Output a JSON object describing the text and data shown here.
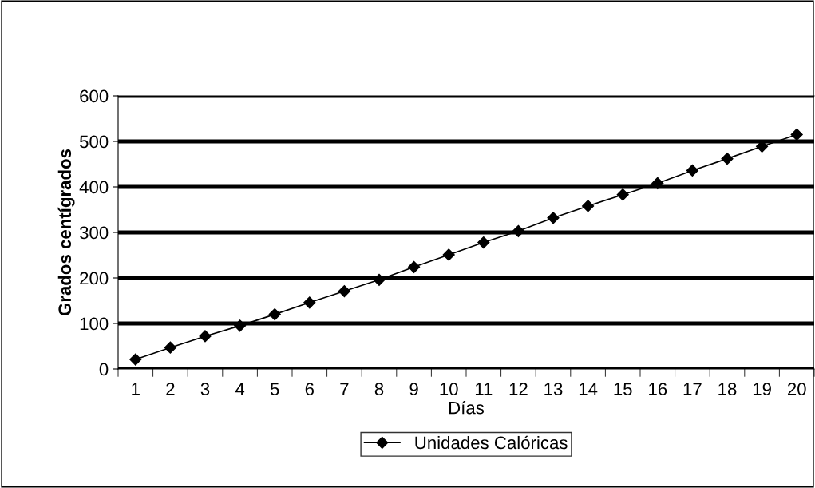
{
  "chart_data": {
    "type": "line",
    "xlabel": "Días",
    "ylabel": "Grados centígrados",
    "categories": [
      "1",
      "2",
      "3",
      "4",
      "5",
      "6",
      "7",
      "8",
      "9",
      "10",
      "11",
      "12",
      "13",
      "14",
      "15",
      "16",
      "17",
      "18",
      "19",
      "20"
    ],
    "series": [
      {
        "name": "Unidades Calóricas",
        "color": "#000000",
        "values": [
          21,
          47,
          72,
          95,
          120,
          146,
          171,
          196,
          224,
          251,
          278,
          303,
          332,
          358,
          383,
          408,
          436,
          462,
          489,
          515
        ]
      }
    ],
    "ylim": [
      0,
      600
    ],
    "yticks": [
      0,
      100,
      200,
      300,
      400,
      500,
      600
    ],
    "grid": "y",
    "legend": "bottom",
    "marker": "diamond",
    "line_style": "solid"
  }
}
